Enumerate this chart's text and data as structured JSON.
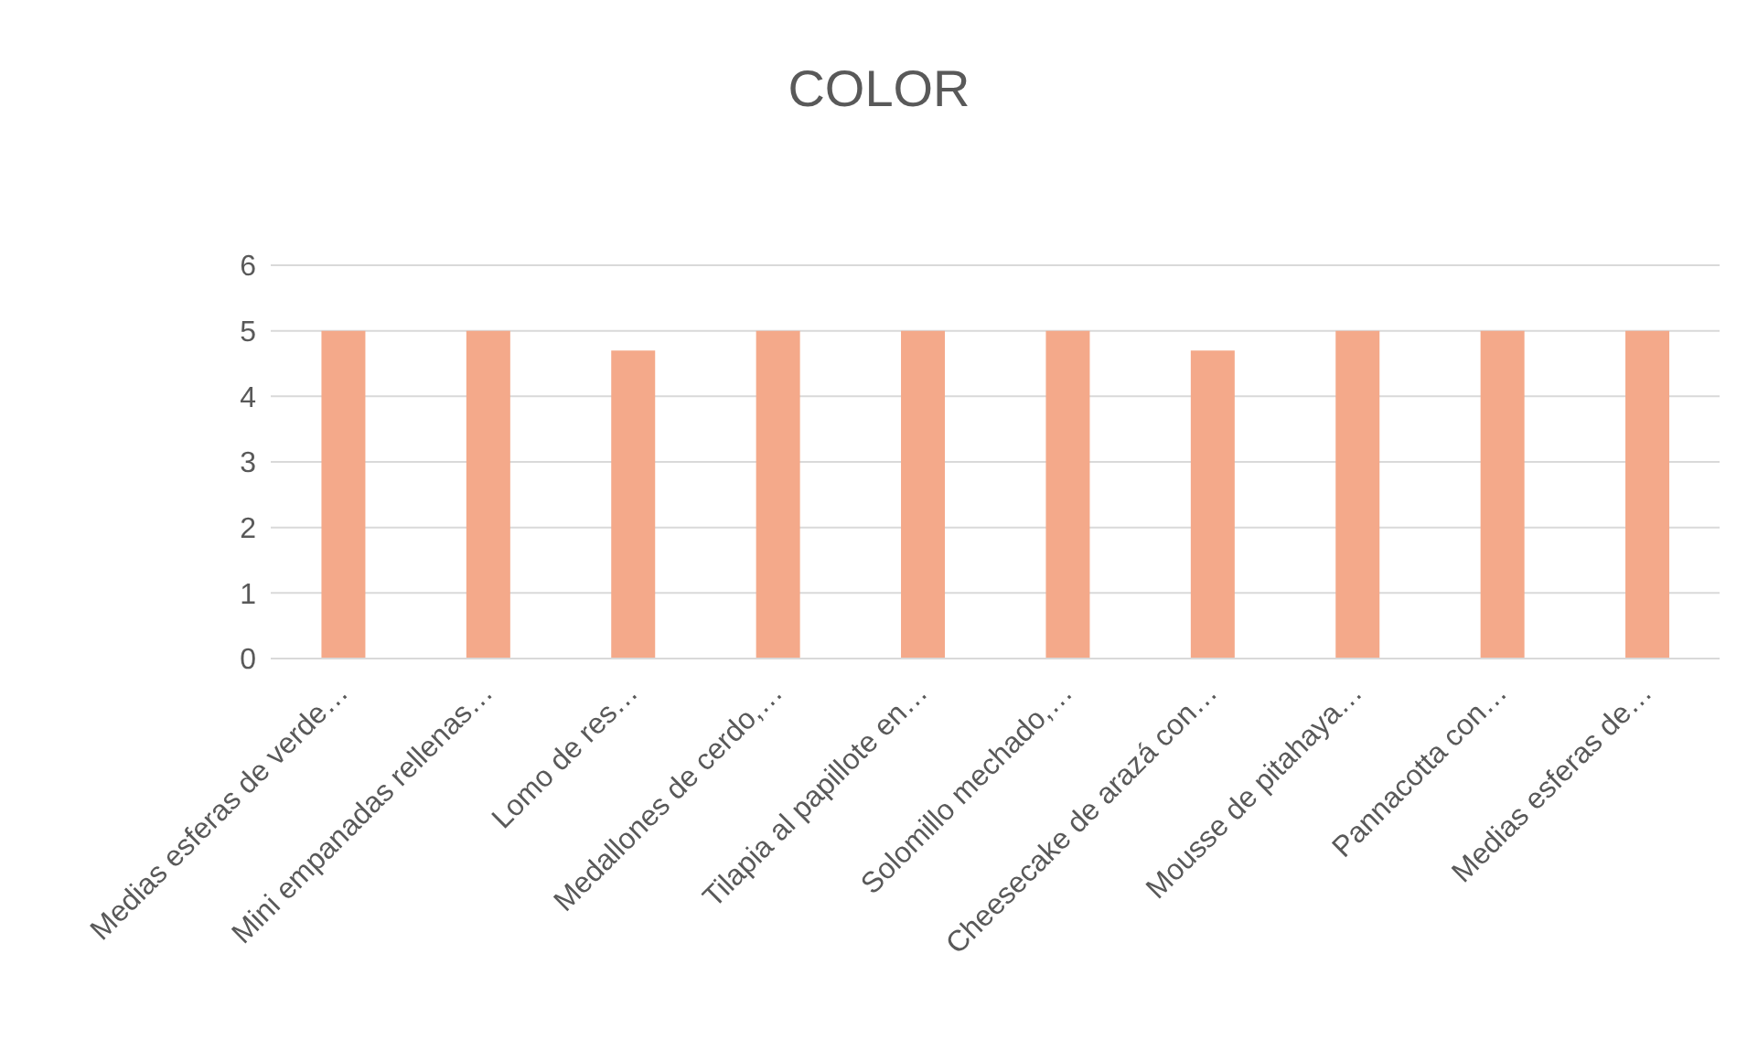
{
  "chart_data": {
    "type": "bar",
    "title": "COLOR",
    "categories": [
      "Medias esferas de verde…",
      "Mini empanadas rellenas…",
      "Lomo de res…",
      "Medallones de cerdo,…",
      "Tilapia al papillote en…",
      "Solomillo mechado,…",
      "Cheesecake de arazá con…",
      "Mousse de pitahaya…",
      "Pannacotta con…",
      "Medias esferas de…"
    ],
    "values": [
      5,
      5,
      4.7,
      5,
      5,
      5,
      4.7,
      5,
      5,
      5
    ],
    "color": "#f4a98a",
    "ylim": [
      0,
      6
    ],
    "yticks": [
      0,
      1,
      2,
      3,
      4,
      5,
      6
    ],
    "grid": "y"
  }
}
